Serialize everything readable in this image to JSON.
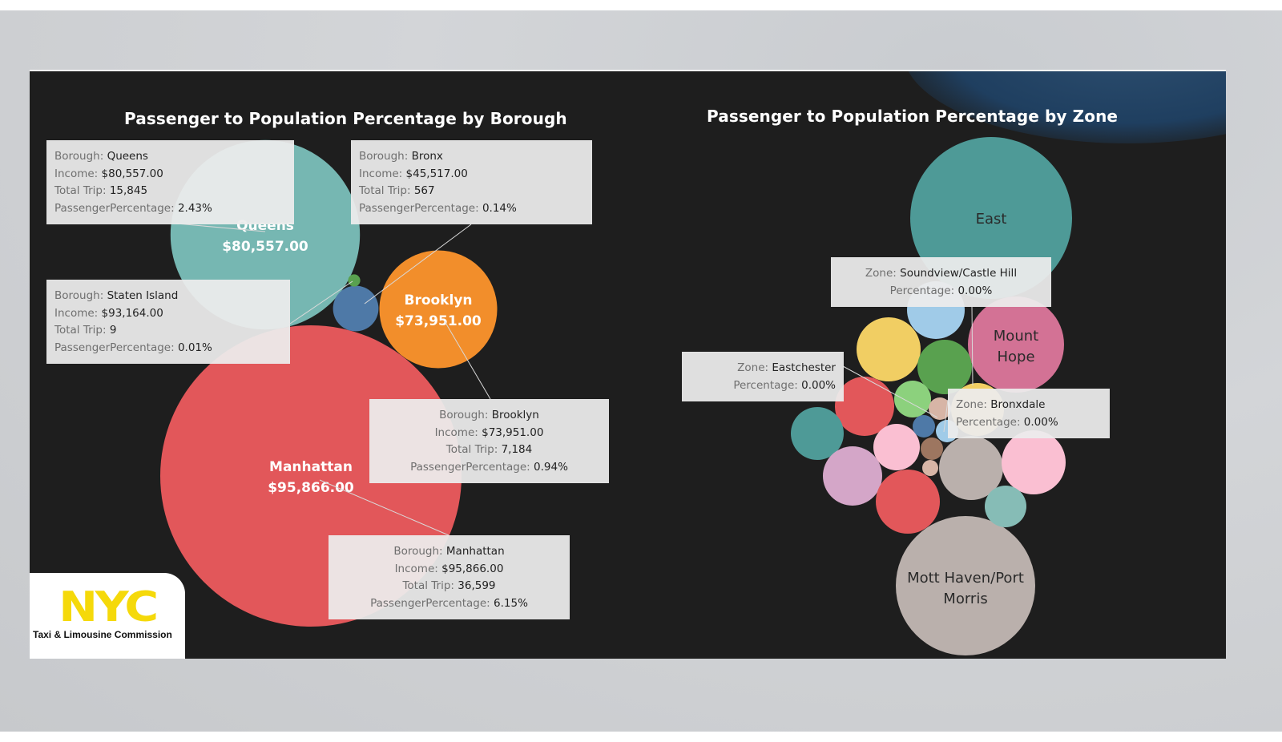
{
  "dashboard": {
    "left_title": "Passenger to Population Percentage by Borough",
    "right_title": "Passenger to Population Percentage by Zone"
  },
  "chart_data": [
    {
      "type": "bubble",
      "title": "Passenger to Population Percentage by Borough",
      "boroughs": [
        {
          "name": "Manhattan",
          "income": "$95,866.00",
          "total_trip": "36,599",
          "passenger_percentage": "6.15%",
          "color": "#e2575a",
          "label_color": "#ffffff"
        },
        {
          "name": "Queens",
          "income": "$80,557.00",
          "total_trip": "15,845",
          "passenger_percentage": "2.43%",
          "color": "#76b7b2",
          "label_color": "#ffffff"
        },
        {
          "name": "Brooklyn",
          "income": "$73,951.00",
          "total_trip": "7,184",
          "passenger_percentage": "0.94%",
          "color": "#f28e2b",
          "label_color": "#ffffff"
        },
        {
          "name": "Bronx",
          "income": "$45,517.00",
          "total_trip": "567",
          "passenger_percentage": "0.14%",
          "color": "#4e79a7",
          "label_color": ""
        },
        {
          "name": "Staten Island",
          "income": "$93,164.00",
          "total_trip": "9",
          "passenger_percentage": "0.01%",
          "color": "#59a14f",
          "label_color": ""
        }
      ]
    },
    {
      "type": "bubble",
      "title": "Passenger to Population Percentage by Zone",
      "zones": [
        {
          "name": "East",
          "label": "East",
          "color": "#4e9a97"
        },
        {
          "name": "Mott Haven/Port Morris",
          "label": "Mott Haven/Port Morris",
          "color": "#bab0ac"
        },
        {
          "name": "Mount Hope",
          "label": "Mount Hope",
          "color": "#d37295"
        },
        {
          "name": "Soundview/Castle Hill",
          "label": "",
          "color": "#a0cbe8"
        },
        {
          "name": "Eastchester",
          "label": "",
          "color": "#e2575a"
        },
        {
          "name": "Bronxdale",
          "label": "",
          "color": "#f1ce63"
        },
        {
          "name": "",
          "label": "",
          "color": "#f1ce63"
        },
        {
          "name": "",
          "label": "",
          "color": "#59a14f"
        },
        {
          "name": "",
          "label": "",
          "color": "#8cd17d"
        },
        {
          "name": "",
          "label": "",
          "color": "#4e9a97"
        },
        {
          "name": "",
          "label": "",
          "color": "#fabfd2"
        },
        {
          "name": "",
          "label": "",
          "color": "#d4a6c8"
        },
        {
          "name": "",
          "label": "",
          "color": "#e2575a"
        },
        {
          "name": "",
          "label": "",
          "color": "#bab0ac"
        },
        {
          "name": "",
          "label": "",
          "color": "#fabfd2"
        },
        {
          "name": "",
          "label": "",
          "color": "#86bcb6"
        },
        {
          "name": "",
          "label": "",
          "color": "#d7b5a6"
        },
        {
          "name": "",
          "label": "",
          "color": "#4e79a7"
        },
        {
          "name": "",
          "label": "",
          "color": "#a0cbe8"
        },
        {
          "name": "",
          "label": "",
          "color": "#9d7660"
        },
        {
          "name": "",
          "label": "",
          "color": "#d7b5a6"
        }
      ]
    }
  ],
  "tooltips": {
    "borough": [
      {
        "id": "queens",
        "borough": "Queens",
        "income": "$80,557.00",
        "total_trip": "15,845",
        "passenger_percentage": "2.43%"
      },
      {
        "id": "bronx",
        "borough": "Bronx",
        "income": "$45,517.00",
        "total_trip": "567",
        "passenger_percentage": "0.14%"
      },
      {
        "id": "staten-island",
        "borough": "Staten Island",
        "income": "$93,164.00",
        "total_trip": "9",
        "passenger_percentage": "0.01%"
      },
      {
        "id": "brooklyn",
        "borough": "Brooklyn",
        "income": "$73,951.00",
        "total_trip": "7,184",
        "passenger_percentage": "0.94%"
      },
      {
        "id": "manhattan",
        "borough": "Manhattan",
        "income": "$95,866.00",
        "total_trip": "36,599",
        "passenger_percentage": "6.15%"
      }
    ],
    "zone": [
      {
        "id": "soundview",
        "zone": "Soundview/Castle Hill",
        "percentage": "0.00%"
      },
      {
        "id": "eastchester",
        "zone": "Eastchester",
        "percentage": "0.00%"
      },
      {
        "id": "bronxdale",
        "zone": "Bronxdale",
        "percentage": "0.00%"
      }
    ],
    "keys": {
      "borough": "Borough:",
      "income": "Income:",
      "total_trip": "Total Trip:",
      "passenger_percentage": "PassengerPercentage:",
      "zone": "Zone:",
      "percentage": "Percentage:"
    }
  },
  "logo": {
    "mark": "NYC",
    "caption": "Taxi & Limousine Commission",
    "color": "#f5d90a"
  }
}
